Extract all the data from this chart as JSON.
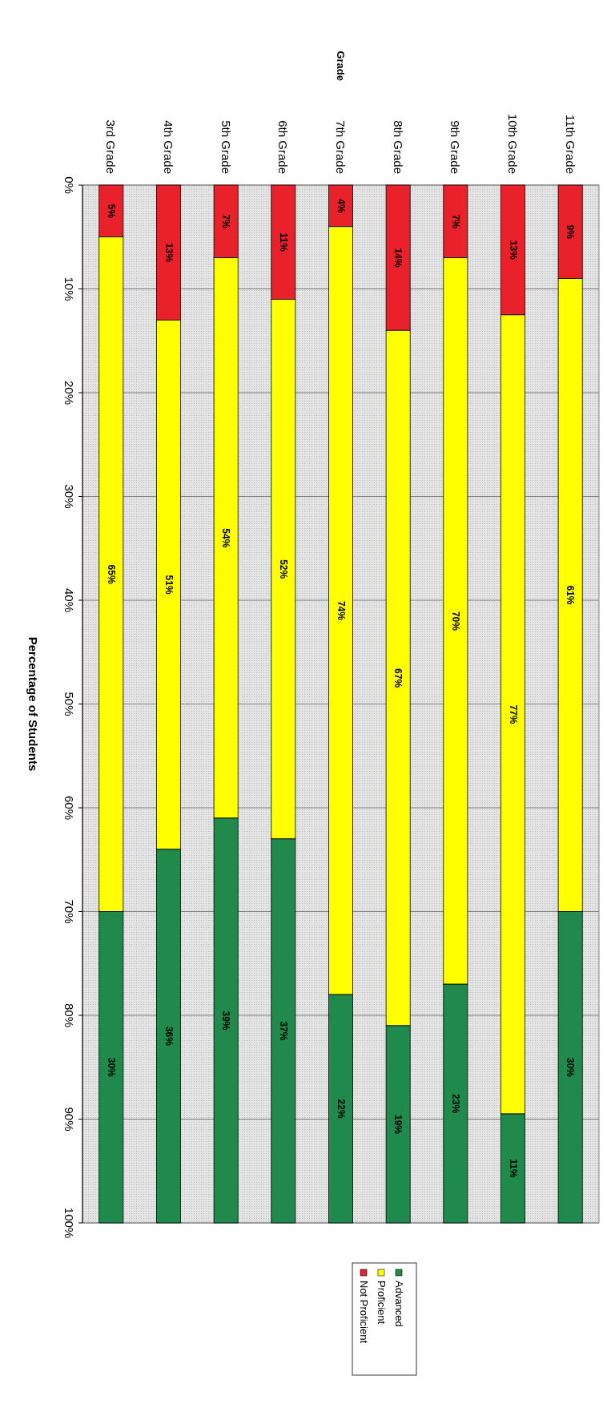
{
  "chart_data": {
    "type": "bar",
    "stacked": true,
    "annotations": [
      "Grade"
    ],
    "ylabel": "Percentage of Students",
    "categories": [
      "3rd Grade",
      "4th Grade",
      "5th Grade",
      "6th Grade",
      "7th Grade",
      "8th Grade",
      "9th Grade",
      "10th Grade",
      "11th Grade"
    ],
    "series": [
      {
        "name": "Not Proficient",
        "color": "#e8212b",
        "values": [
          5,
          13,
          7,
          11,
          4,
          14,
          7,
          12.5,
          9
        ],
        "value_labels": [
          "5%",
          "13%",
          "7%",
          "11%",
          "4%",
          "14%",
          "7%",
          "13%",
          "9%"
        ]
      },
      {
        "name": "Proficient",
        "color": "#ffff00",
        "values": [
          65,
          51,
          54,
          52,
          74,
          67,
          70,
          77,
          61
        ],
        "value_labels": [
          "65%",
          "51%",
          "54%",
          "52%",
          "74%",
          "67%",
          "70%",
          "77%",
          "61%"
        ]
      },
      {
        "name": "Advanced",
        "color": "#1f8a4c",
        "values": [
          30,
          36,
          39,
          37,
          22,
          19,
          23,
          10.5,
          30
        ],
        "value_labels": [
          "30%",
          "36%",
          "39%",
          "37%",
          "22%",
          "19%",
          "23%",
          "11%",
          "30%"
        ]
      }
    ],
    "ylim": [
      100,
      0
    ],
    "yticks": [
      {
        "value": 0,
        "label": "0%"
      },
      {
        "value": 10,
        "label": "10%"
      },
      {
        "value": 20,
        "label": "20%"
      },
      {
        "value": 30,
        "label": "30%"
      },
      {
        "value": 40,
        "label": "40%"
      },
      {
        "value": 50,
        "label": "50%"
      },
      {
        "value": 60,
        "label": "60%"
      },
      {
        "value": 70,
        "label": "70%"
      },
      {
        "value": 80,
        "label": "80%"
      },
      {
        "value": 90,
        "label": "90%"
      },
      {
        "value": 100,
        "label": "100%"
      }
    ],
    "grid": "y",
    "legend": "bottom"
  }
}
